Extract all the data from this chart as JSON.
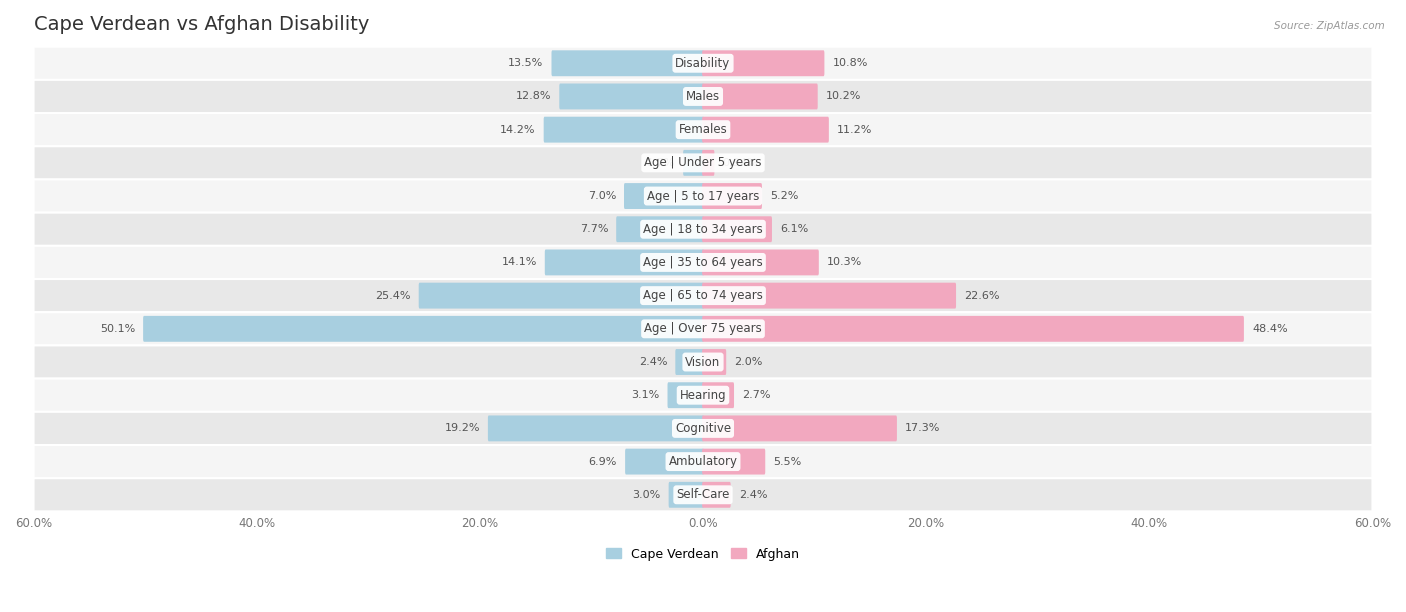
{
  "title": "Cape Verdean vs Afghan Disability",
  "source": "Source: ZipAtlas.com",
  "categories": [
    "Disability",
    "Males",
    "Females",
    "Age | Under 5 years",
    "Age | 5 to 17 years",
    "Age | 18 to 34 years",
    "Age | 35 to 64 years",
    "Age | 65 to 74 years",
    "Age | Over 75 years",
    "Vision",
    "Hearing",
    "Cognitive",
    "Ambulatory",
    "Self-Care"
  ],
  "cape_verdean": [
    13.5,
    12.8,
    14.2,
    1.7,
    7.0,
    7.7,
    14.1,
    25.4,
    50.1,
    2.4,
    3.1,
    19.2,
    6.9,
    3.0
  ],
  "afghan": [
    10.8,
    10.2,
    11.2,
    0.94,
    5.2,
    6.1,
    10.3,
    22.6,
    48.4,
    2.0,
    2.7,
    17.3,
    5.5,
    2.4
  ],
  "cape_verdean_color": "#a8cfe0",
  "afghan_color": "#f2a8bf",
  "background_color": "#ffffff",
  "row_color_light": "#f5f5f5",
  "row_color_dark": "#e8e8e8",
  "xlim": 60.0,
  "title_fontsize": 14,
  "label_fontsize": 8.5,
  "tick_fontsize": 8.5,
  "value_fontsize": 8.0
}
